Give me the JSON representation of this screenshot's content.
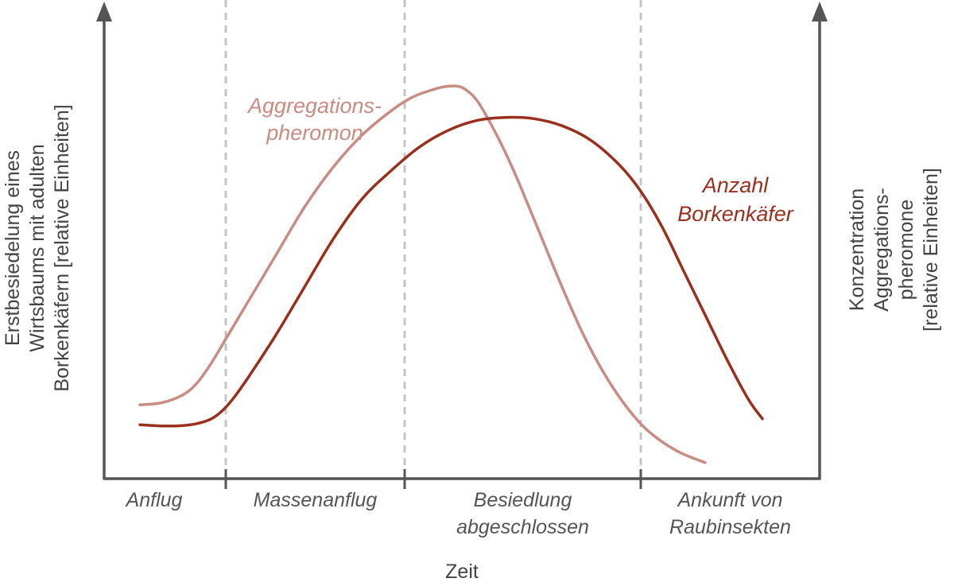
{
  "chart_data": {
    "type": "line",
    "xlabel": "Zeit",
    "ylabel_left_lines": [
      "Erstbesiedelung eines",
      "Wirtsbaums mit adulten",
      "Borkenkäfern [relative Einheiten]"
    ],
    "ylabel_right_lines": [
      "Konzentration",
      "Aggregations-",
      "pheromone",
      "[relative Einheiten]"
    ],
    "xlim": [
      0,
      100
    ],
    "ylim": [
      0,
      100
    ],
    "phase_boundaries": [
      17,
      42,
      75
    ],
    "phases": [
      {
        "name": "anflug",
        "lines": [
          "Anflug"
        ],
        "x": 7
      },
      {
        "name": "massenanflug",
        "lines": [
          "Massenanflug"
        ],
        "x": 29.5
      },
      {
        "name": "besiedlung",
        "lines": [
          "Besiedlung",
          "abgeschlossen"
        ],
        "x": 58.5
      },
      {
        "name": "ankunft",
        "lines": [
          "Ankunft von",
          "Raubinsekten"
        ],
        "x": 87.5
      }
    ],
    "series": [
      {
        "key": "pheromon",
        "label_lines": [
          "Aggregations-",
          "pheromon"
        ],
        "color": "#c98c82",
        "x": [
          5,
          8,
          11,
          13,
          15,
          17,
          20,
          24,
          28,
          32,
          36,
          40,
          43,
          46,
          48,
          50,
          52,
          54,
          56,
          58,
          61,
          64,
          67,
          70,
          73,
          76,
          80,
          84
        ],
        "values": [
          18.5,
          19,
          21,
          24,
          29,
          35,
          44,
          56,
          68,
          78,
          86,
          92,
          95.5,
          97.5,
          98.3,
          98,
          95,
          89,
          82,
          74,
          61,
          48,
          36,
          26,
          18,
          12,
          7,
          4
        ]
      },
      {
        "key": "borkenkaefer",
        "label_lines": [
          "Anzahl",
          "Borkenkäfer"
        ],
        "color": "#9b2f1e",
        "x": [
          5,
          8,
          11,
          13,
          15,
          16.5,
          18,
          20,
          24,
          28,
          32,
          36,
          40,
          44,
          48,
          52,
          56,
          60,
          64,
          68,
          72,
          75,
          78,
          81,
          84,
          87,
          90,
          92
        ],
        "values": [
          13.5,
          13.2,
          13.3,
          13.8,
          15,
          17,
          20,
          25,
          36,
          48,
          60,
          70,
          77,
          83,
          87.2,
          89.7,
          90.5,
          90.2,
          88.4,
          84.8,
          78.6,
          72,
          63,
          52,
          41,
          30,
          20,
          15
        ]
      }
    ]
  }
}
